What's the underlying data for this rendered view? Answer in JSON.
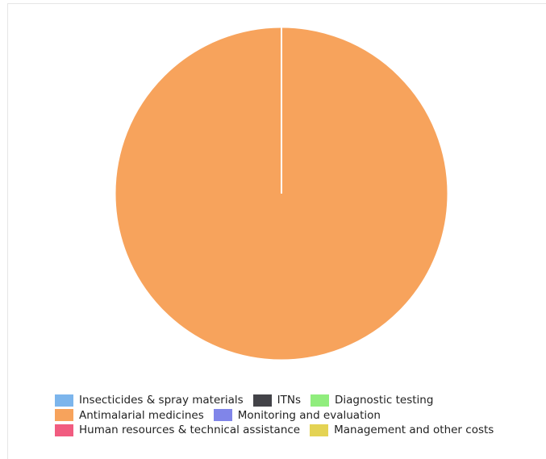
{
  "chart_data": {
    "type": "pie",
    "title": "",
    "categories": [
      "Insecticides & spray materials",
      "ITNs",
      "Diagnostic testing",
      "Antimalarial medicines",
      "Monitoring and evaluation",
      "Human resources & technical assistance",
      "Management and other costs"
    ],
    "values": [
      0,
      0,
      0,
      100,
      0,
      0,
      0
    ],
    "colors": [
      "#7cb5ec",
      "#434348",
      "#90ed7d",
      "#f7a35c",
      "#8085e9",
      "#f15c80",
      "#e4d354"
    ],
    "legend_position": "bottom",
    "legend_rows": [
      [
        0,
        1,
        2
      ],
      [
        3,
        4
      ],
      [
        5,
        6
      ]
    ]
  }
}
